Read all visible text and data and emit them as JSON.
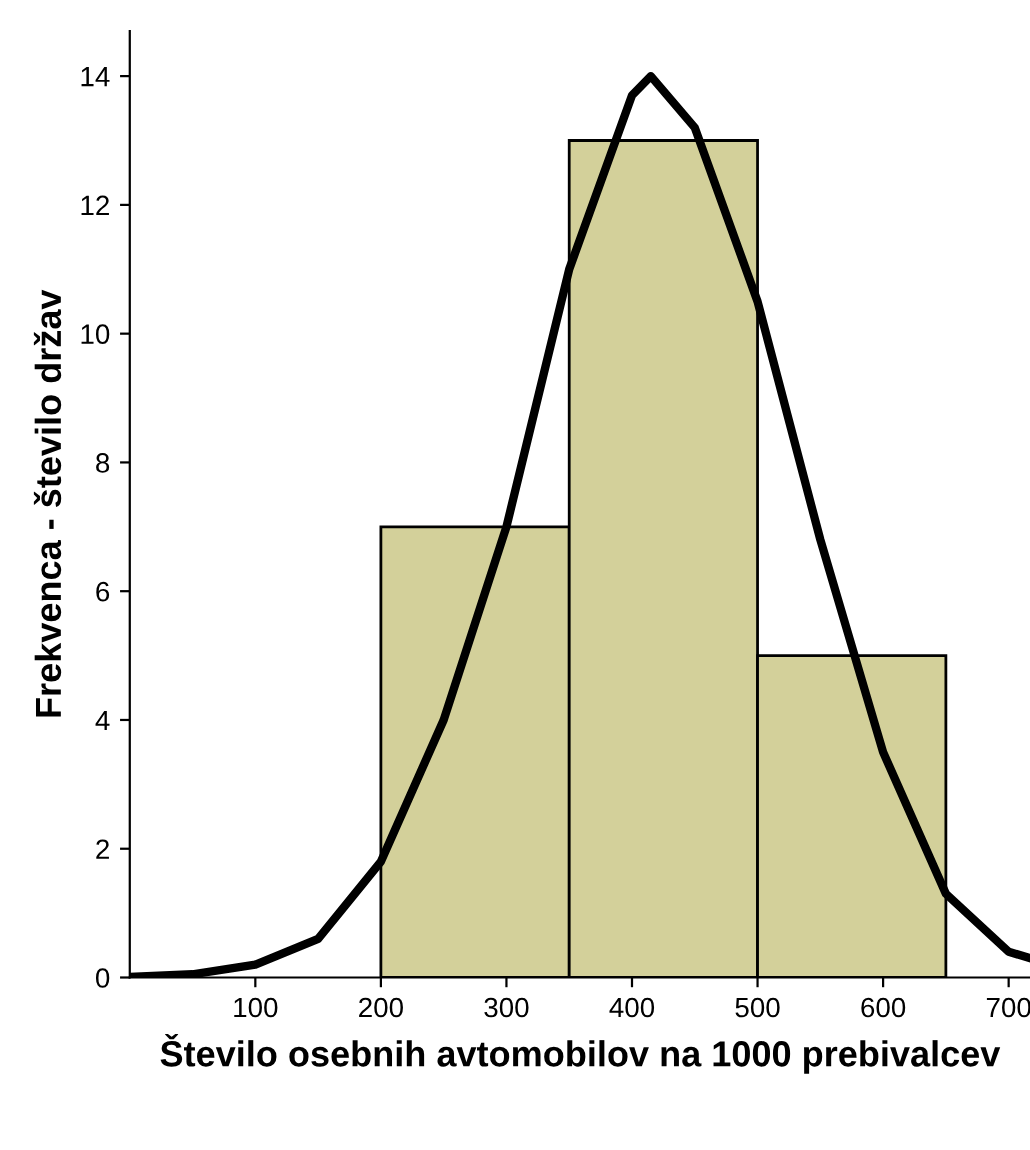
{
  "chart_data": {
    "type": "histogram",
    "xlabel": "Število osebnih avtomobilov na 1000 prebivalcev",
    "ylabel": "Frekvenca - število držav",
    "bins": [
      200,
      350,
      500,
      650
    ],
    "values": [
      7,
      13,
      5
    ],
    "color": "#d3d09a",
    "series": [
      {
        "type": "line",
        "color": "#000000",
        "x": [
          0,
          50,
          100,
          150,
          200,
          250,
          300,
          350,
          400,
          415,
          450,
          500,
          550,
          600,
          650,
          700,
          717
        ],
        "values": [
          0.01,
          0.05,
          0.2,
          0.6,
          1.8,
          4.0,
          7.0,
          11.0,
          13.7,
          14.0,
          13.2,
          10.5,
          6.8,
          3.5,
          1.3,
          0.4,
          0.3
        ]
      }
    ],
    "xlim": [
      0,
      717
    ],
    "xticks": [
      100,
      200,
      300,
      400,
      500,
      600,
      700
    ],
    "ylim": [
      0,
      14.7
    ],
    "yticks": [
      0,
      2,
      4,
      6,
      8,
      10,
      12,
      14
    ],
    "grid": false,
    "legend": false
  }
}
